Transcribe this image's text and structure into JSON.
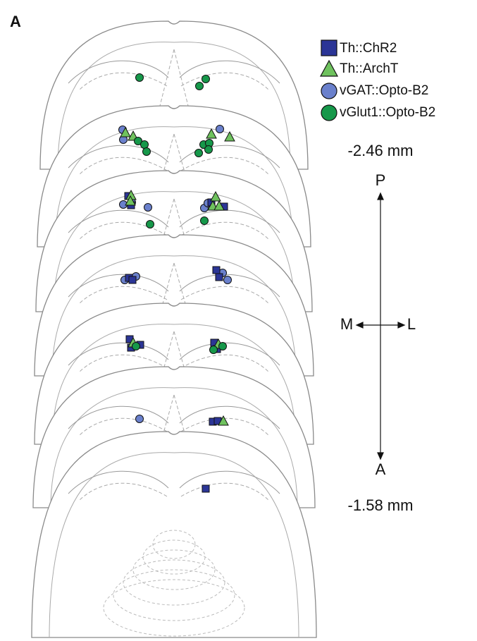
{
  "panel_label": "A",
  "legend": [
    "Th::ChR2",
    "Th::ArchT",
    "vGAT::Opto-B2",
    "vGlut1::Opto-B2"
  ],
  "posterior_level": "-2.46 mm",
  "anterior_level": "-1.58 mm",
  "axes": {
    "posterior": "P",
    "anterior": "A",
    "medial": "M",
    "lateral": "L"
  }
}
